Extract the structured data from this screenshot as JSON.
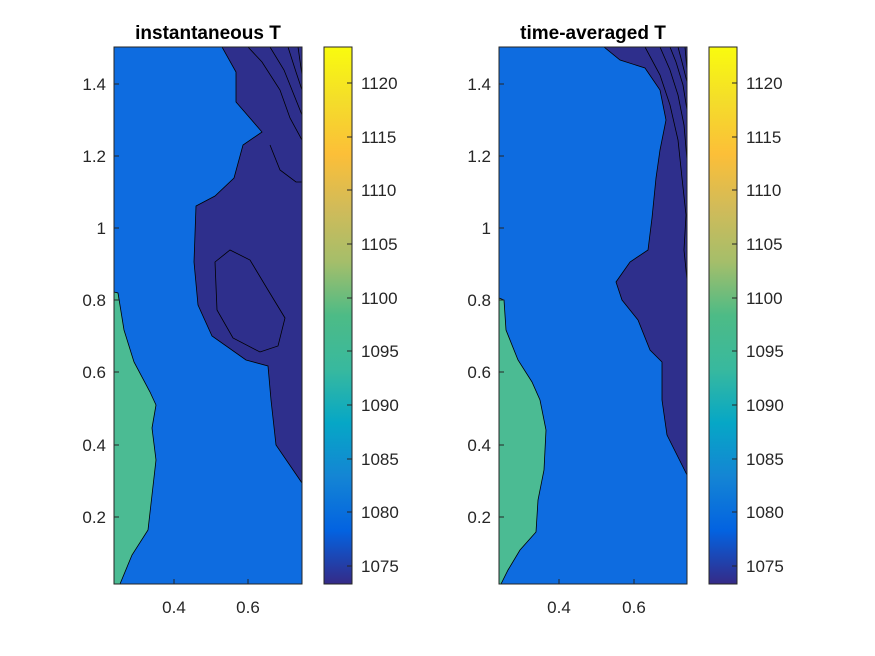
{
  "chart_data": [
    {
      "type": "contour",
      "title": "instantaneous T",
      "xlim": [
        0.25,
        0.75
      ],
      "ylim": [
        0.0,
        1.5
      ],
      "xticks": [
        "0.4",
        "0.6"
      ],
      "xtick_values": [
        0.4,
        0.6
      ],
      "yticks": [
        "0.2",
        "0.4",
        "0.6",
        "0.8",
        "1",
        "1.2",
        "1.4"
      ],
      "ytick_values": [
        0.2,
        0.4,
        0.6,
        0.8,
        1.0,
        1.2,
        1.4
      ],
      "colorbar": {
        "ticks": [
          "1075",
          "1080",
          "1085",
          "1090",
          "1095",
          "1100",
          "1105",
          "1110",
          "1115",
          "1120"
        ],
        "tick_values": [
          1075,
          1080,
          1085,
          1090,
          1095,
          1100,
          1105,
          1110,
          1115,
          1120
        ],
        "range": [
          1073,
          1123
        ],
        "colormap": "parula"
      },
      "regions": [
        {
          "level": "1080",
          "color": "#0e6ce0",
          "description": "background field"
        },
        {
          "level": "1100",
          "color": "#4bbb93",
          "description": "warm region along left wall, x 0.25-0.36, y 0.0-0.82"
        },
        {
          "level": "1075",
          "color": "#2e2f8c",
          "description": "cool region along right side, x 0.47-0.75, y 0.28-1.5"
        }
      ]
    },
    {
      "type": "contour",
      "title": "time-averaged T",
      "xlim": [
        0.25,
        0.75
      ],
      "ylim": [
        0.0,
        1.5
      ],
      "xticks": [
        "0.4",
        "0.6"
      ],
      "xtick_values": [
        0.4,
        0.6
      ],
      "yticks": [
        "0.2",
        "0.4",
        "0.6",
        "0.8",
        "1",
        "1.2",
        "1.4"
      ],
      "ytick_values": [
        0.2,
        0.4,
        0.6,
        0.8,
        1.0,
        1.2,
        1.4
      ],
      "colorbar": {
        "ticks": [
          "1075",
          "1080",
          "1085",
          "1090",
          "1095",
          "1100",
          "1105",
          "1110",
          "1115",
          "1120"
        ],
        "tick_values": [
          1075,
          1080,
          1085,
          1090,
          1095,
          1100,
          1105,
          1110,
          1115,
          1120
        ],
        "range": [
          1073,
          1123
        ],
        "colormap": "parula"
      },
      "regions": [
        {
          "level": "1080",
          "color": "#0e6ce0",
          "description": "background field"
        },
        {
          "level": "1100",
          "color": "#4bbb93",
          "description": "warm region along left wall, x 0.25-0.36, y 0.0-0.80"
        },
        {
          "level": "1075",
          "color": "#2e2f8c",
          "description": "cool region along right side, x 0.55-0.75, y 0.30-1.5"
        }
      ]
    }
  ]
}
